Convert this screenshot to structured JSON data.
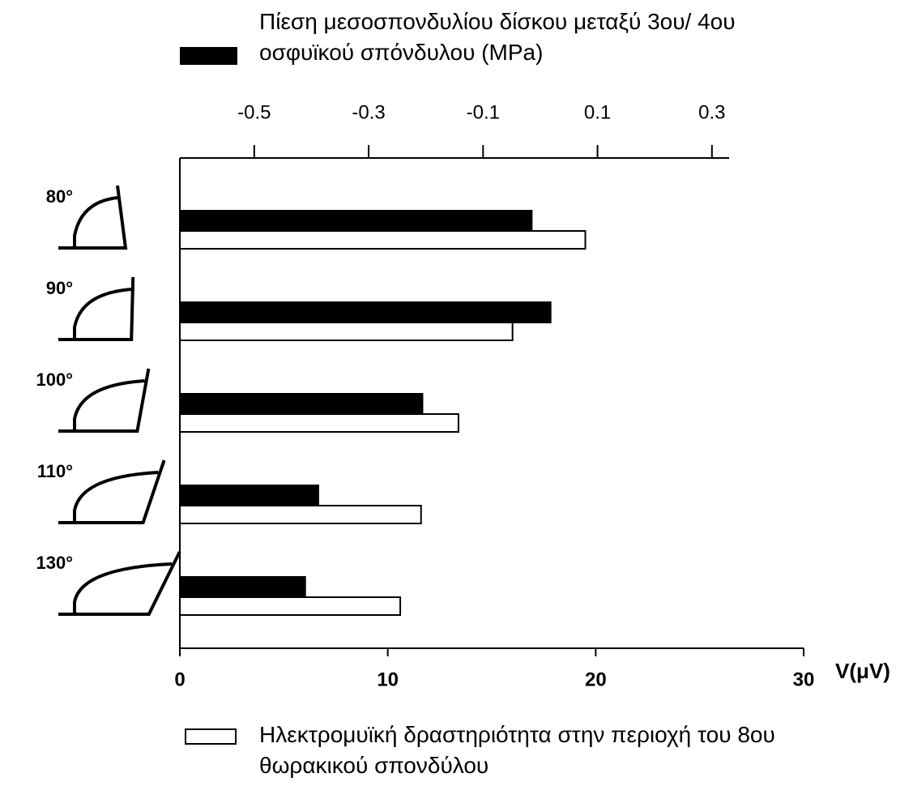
{
  "chart_data": {
    "type": "bar",
    "orientation": "horizontal",
    "categories": [
      "80°",
      "90°",
      "100°",
      "110°",
      "130°"
    ],
    "series": [
      {
        "name": "Πίεση μεσοσπονδυλίου δίσκου μεταξύ 3ου/ 4ου οσφυϊκού σπόνδυλου (MPa)",
        "color": "#000000",
        "axis": "x2",
        "values": [
          -0.015,
          0.018,
          -0.206,
          -0.388,
          -0.411
        ]
      },
      {
        "name": "Ηλεκτρομυϊκή δραστηριότητα στην περιοχή του 8ου θωρακικού σπονδύλου",
        "color": "#ffffff",
        "values": [
          19.5,
          16.0,
          13.4,
          11.6,
          10.6
        ]
      }
    ],
    "xlabel": "V(μV)",
    "xlim": [
      0,
      30
    ],
    "xticks": [
      0,
      10,
      20,
      30
    ],
    "x2lim": [
      -0.63,
      0.33
    ],
    "x2ticks": [
      -0.5,
      -0.3,
      -0.1,
      0.1,
      0.3
    ]
  }
}
